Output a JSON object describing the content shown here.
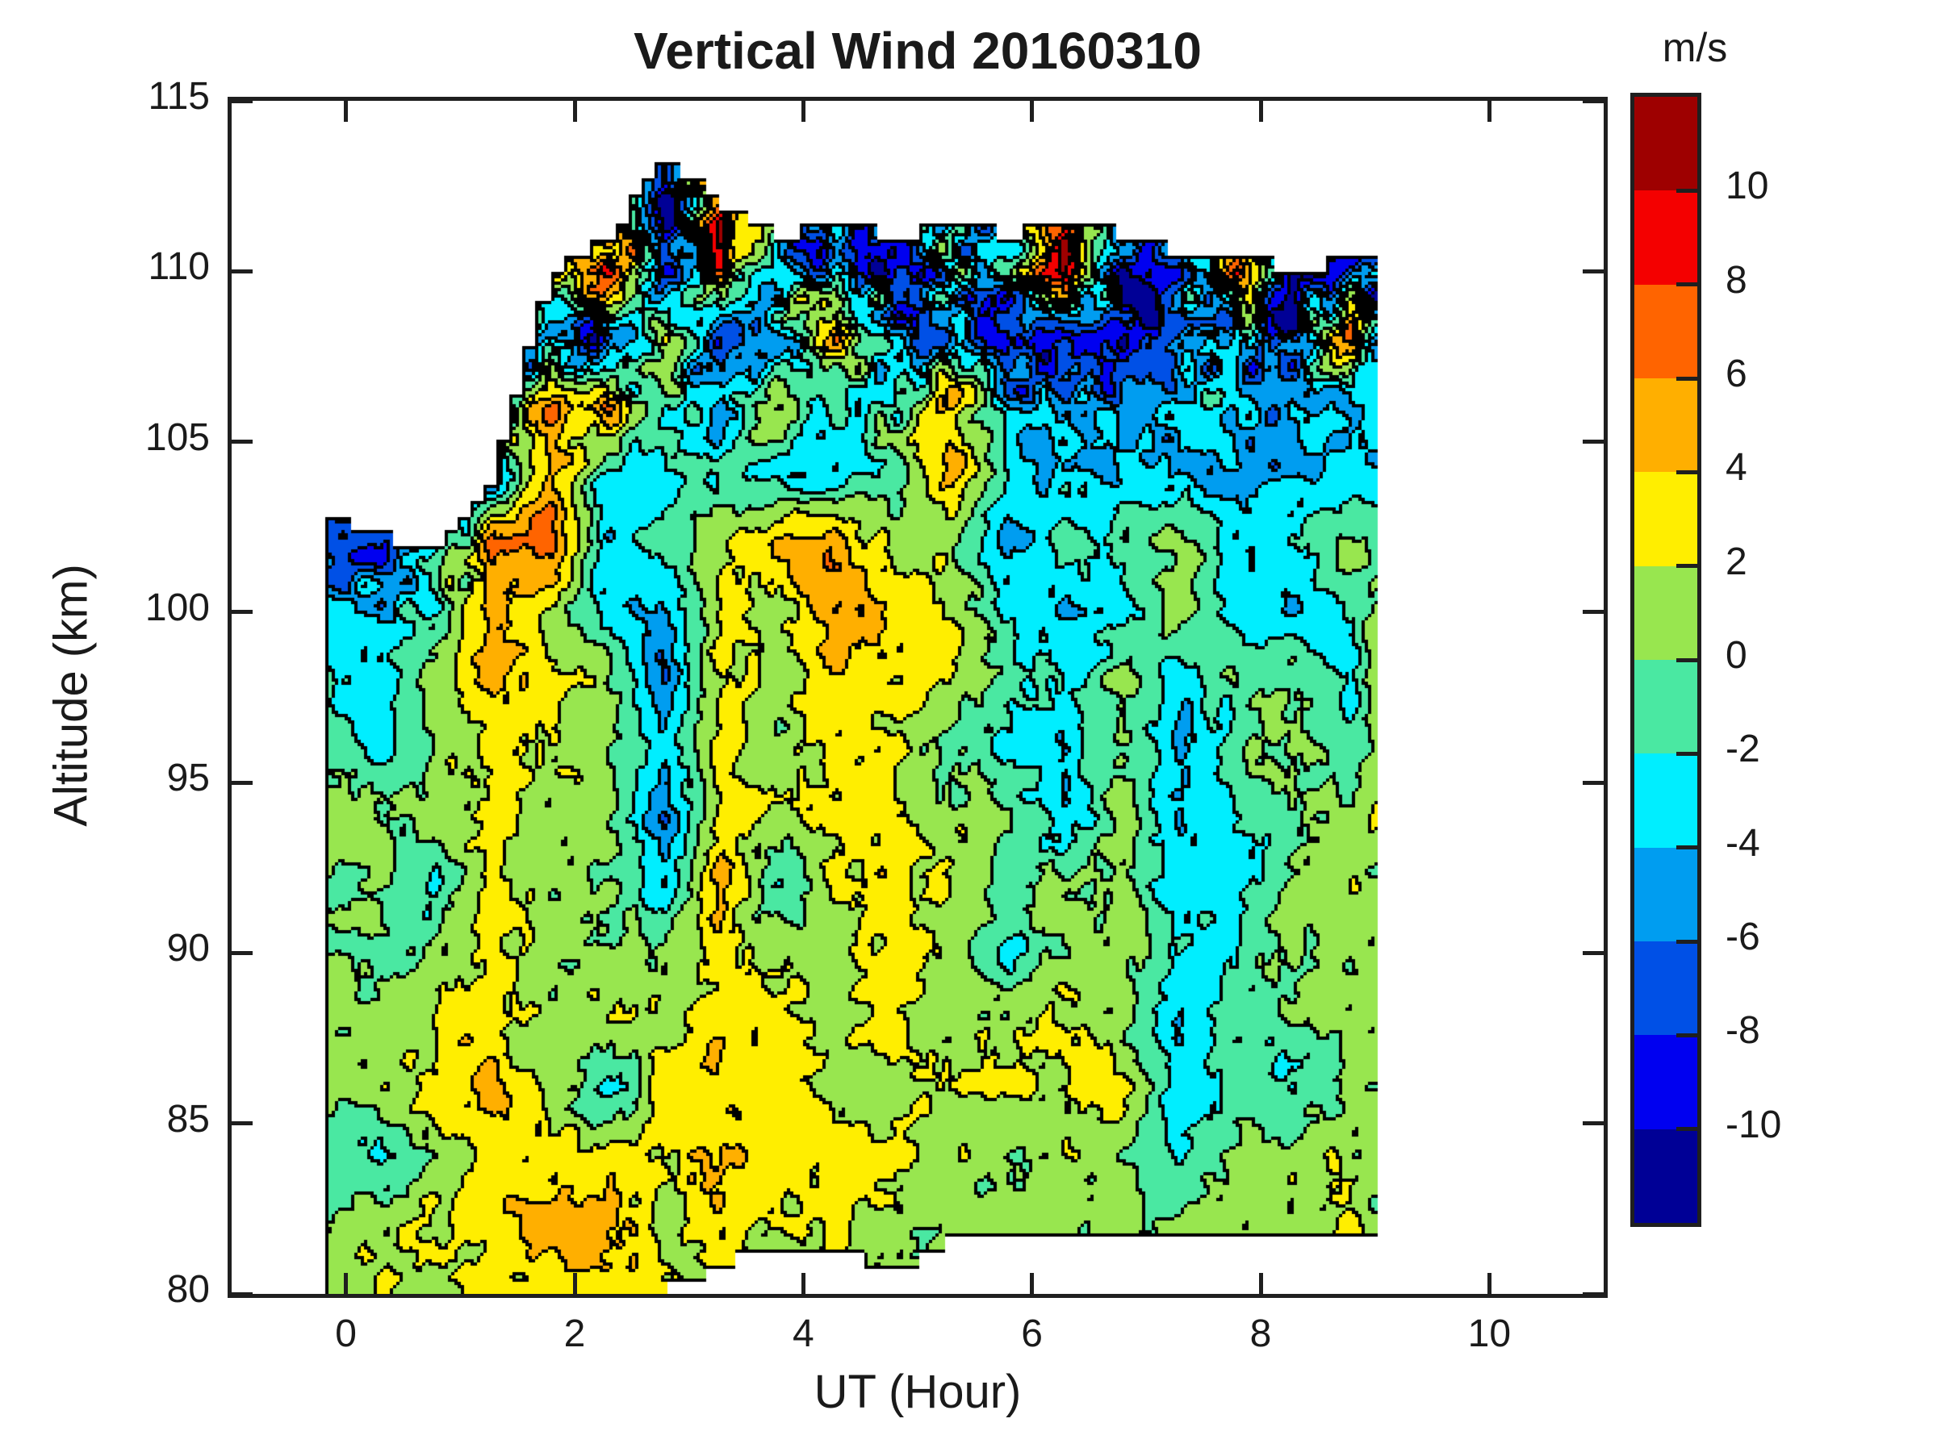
{
  "title": "Vertical Wind 20160310",
  "axes": {
    "xlabel": "UT (Hour)",
    "ylabel": "Altitude (km)",
    "x_range": [
      -1,
      11
    ],
    "y_range": [
      80,
      115
    ],
    "x_tick_values": [
      0,
      2,
      4,
      6,
      8,
      10
    ],
    "x_tick_labels": [
      "0",
      "2",
      "4",
      "6",
      "8",
      "10"
    ],
    "y_tick_values": [
      115,
      110,
      105,
      100,
      95,
      90,
      85,
      80
    ],
    "y_tick_labels": [
      "115",
      "110",
      "105",
      "100",
      "95",
      "90",
      "85",
      "80"
    ]
  },
  "colorbar": {
    "label": "m/s",
    "tick_values": [
      10,
      8,
      6,
      4,
      2,
      0,
      -2,
      -4,
      -6,
      -8,
      -10
    ],
    "tick_labels": [
      "10",
      "8",
      "6",
      "4",
      "2",
      "0",
      "-2",
      "-4",
      "-6",
      "-8",
      "-10"
    ]
  },
  "chart_data": {
    "type": "filled_contour",
    "title": "Vertical Wind 20160310",
    "xlabel": "UT (Hour)",
    "ylabel": "Altitude (km)",
    "units": "m/s",
    "xlim": [
      -1,
      11
    ],
    "ylim": [
      80,
      115
    ],
    "levels": [
      -12,
      -10,
      -8,
      -6,
      -4,
      -2,
      0,
      2,
      4,
      6,
      8,
      10,
      12
    ],
    "band_colors": [
      "#000096",
      "#0000f0",
      "#0050e6",
      "#009df0",
      "#00eeff",
      "#4ae8a2",
      "#98e64f",
      "#ffee00",
      "#ffaf00",
      "#ff6400",
      "#f40000",
      "#9e0000"
    ],
    "contour_line_color": "#000000",
    "data_x_extent": [
      -0.2,
      9.0
    ],
    "grid": {
      "x": [
        -0.2,
        0.3,
        0.8,
        1.3,
        1.8,
        2.3,
        2.8,
        3.3,
        3.8,
        4.3,
        4.8,
        5.3,
        5.8,
        6.3,
        6.8,
        7.3,
        7.8,
        8.3,
        8.8,
        9.0
      ],
      "alt": [
        80,
        82,
        84,
        86,
        88,
        90,
        92,
        94,
        96,
        98,
        100,
        102,
        104,
        106,
        108,
        110,
        112
      ],
      "values": [
        [
          1.0,
          2.5,
          1.0,
          3.0,
          3.0,
          2.5,
          2.5,
          null,
          null,
          null,
          null,
          null,
          null,
          null,
          null,
          null,
          null,
          null,
          null,
          null
        ],
        [
          0.0,
          1.0,
          2.5,
          3.0,
          5.5,
          5.0,
          1.0,
          3.0,
          1.0,
          2.5,
          1.0,
          0.5,
          1.0,
          0.5,
          1.0,
          0.5,
          1.0,
          1.0,
          2.5,
          1.0
        ],
        [
          -1.0,
          -2.5,
          1.0,
          3.0,
          3.0,
          2.5,
          2.5,
          4.5,
          3.0,
          3.5,
          2.0,
          1.0,
          0.5,
          1.0,
          0.5,
          -3.0,
          0.5,
          1.5,
          1.0,
          0.5
        ],
        [
          0.5,
          1.0,
          2.5,
          5.0,
          1.0,
          -3.0,
          2.5,
          3.0,
          3.0,
          1.0,
          1.0,
          1.5,
          2.5,
          2.5,
          2.5,
          -3.5,
          -0.5,
          -3.0,
          0.5,
          1.0
        ],
        [
          1.0,
          0.5,
          2.5,
          3.0,
          1.0,
          2.5,
          1.0,
          3.0,
          3.0,
          1.5,
          3.0,
          0.5,
          1.5,
          2.5,
          0.5,
          -4.0,
          -1.0,
          -0.5,
          1.0,
          1.5
        ],
        [
          0.5,
          -0.5,
          1.0,
          3.0,
          0.5,
          1.0,
          0.5,
          3.0,
          1.0,
          1.0,
          3.0,
          1.0,
          -3.0,
          0.5,
          1.5,
          -3.0,
          -2.5,
          1.0,
          0.5,
          1.0
        ],
        [
          -0.5,
          1.0,
          -3.0,
          3.0,
          1.0,
          0.5,
          -4.0,
          5.0,
          -3.0,
          2.5,
          3.0,
          1.5,
          -0.5,
          1.0,
          0.5,
          -3.0,
          -3.0,
          0.5,
          1.5,
          0.5
        ],
        [
          1.0,
          0.5,
          1.0,
          3.0,
          0.5,
          1.0,
          -6.0,
          3.0,
          1.0,
          3.0,
          2.0,
          1.0,
          0.5,
          -3.5,
          1.0,
          -4.0,
          -2.5,
          -0.5,
          0.5,
          1.5
        ],
        [
          0.5,
          -3.0,
          0.5,
          3.0,
          2.5,
          0.5,
          -4.0,
          3.0,
          1.0,
          3.0,
          3.0,
          -1.0,
          -3.0,
          -3.5,
          0.5,
          -4.5,
          -1.0,
          1.0,
          -2.5,
          0.5
        ],
        [
          -2.5,
          -3.0,
          1.0,
          5.0,
          2.5,
          1.0,
          -7.0,
          3.0,
          0.5,
          4.0,
          2.5,
          2.5,
          -1.0,
          -2.5,
          1.0,
          -3.0,
          -0.5,
          0.5,
          -3.0,
          1.0
        ],
        [
          -3.0,
          -3.0,
          -2.0,
          5.5,
          1.0,
          -2.5,
          -4.0,
          3.0,
          1.0,
          6.0,
          3.0,
          2.5,
          -2.5,
          -4.0,
          -3.5,
          1.0,
          -3.0,
          -4.0,
          -2.0,
          0.5
        ],
        [
          -7.0,
          -8.0,
          -4.0,
          6.0,
          8.0,
          -4.0,
          -1.0,
          1.0,
          5.0,
          5.0,
          1.0,
          0.5,
          -5.0,
          -1.0,
          -1.0,
          0.5,
          -3.0,
          -2.0,
          1.0,
          -1.0
        ],
        [
          null,
          null,
          null,
          -5.0,
          5.0,
          -4.0,
          -2.0,
          -1.0,
          -4.0,
          -3.0,
          -1.0,
          5.0,
          -2.0,
          -4.0,
          -3.0,
          -4.0,
          -5.0,
          -4.0,
          -4.0,
          -3.0
        ],
        [
          null,
          null,
          null,
          null,
          6.0,
          6.0,
          -2.0,
          -4.0,
          2.0,
          -3.0,
          -1.0,
          5.0,
          -5.0,
          -4.0,
          -6.0,
          -4.0,
          -3.0,
          -5.0,
          -4.0,
          -3.0
        ],
        [
          null,
          null,
          null,
          null,
          -7.0,
          -9.0,
          3.0,
          -8.0,
          -6.0,
          5.0,
          -4.0,
          -6.0,
          -8.0,
          -7.0,
          -9.0,
          -8.0,
          -6.0,
          -9.0,
          9.0,
          -6.0
        ],
        [
          null,
          null,
          null,
          null,
          3.0,
          9.0,
          -8.0,
          6.0,
          -3.0,
          -7.0,
          -8.0,
          -2.0,
          -6.0,
          9.0,
          -9.0,
          -8.0,
          8.0,
          -10.0,
          -9.0,
          -8.0
        ],
        [
          null,
          null,
          null,
          null,
          null,
          null,
          -10.0,
          8.0,
          null,
          null,
          null,
          null,
          null,
          null,
          null,
          null,
          null,
          null,
          null,
          null
        ]
      ],
      "top_boundary": [
        103,
        102.2,
        102,
        104,
        110,
        111,
        113.5,
        112,
        111,
        111.5,
        111,
        111.5,
        111,
        111.6,
        111,
        110.6,
        110.6,
        110,
        110.4,
        110.4
      ],
      "bottom_boundary": [
        80,
        80,
        80,
        80,
        80,
        80,
        80,
        80.9,
        81.3,
        81.3,
        80.7,
        81.7,
        81.7,
        81.6,
        81.5,
        81.5,
        81.5,
        81.5,
        81.7,
        81.7
      ]
    },
    "texture": {
      "base_noise": 1.0,
      "fine_noise": 0.55,
      "upper_noise": 3.5,
      "upper_start_alt": 103,
      "edge_noise": 2.0
    }
  }
}
